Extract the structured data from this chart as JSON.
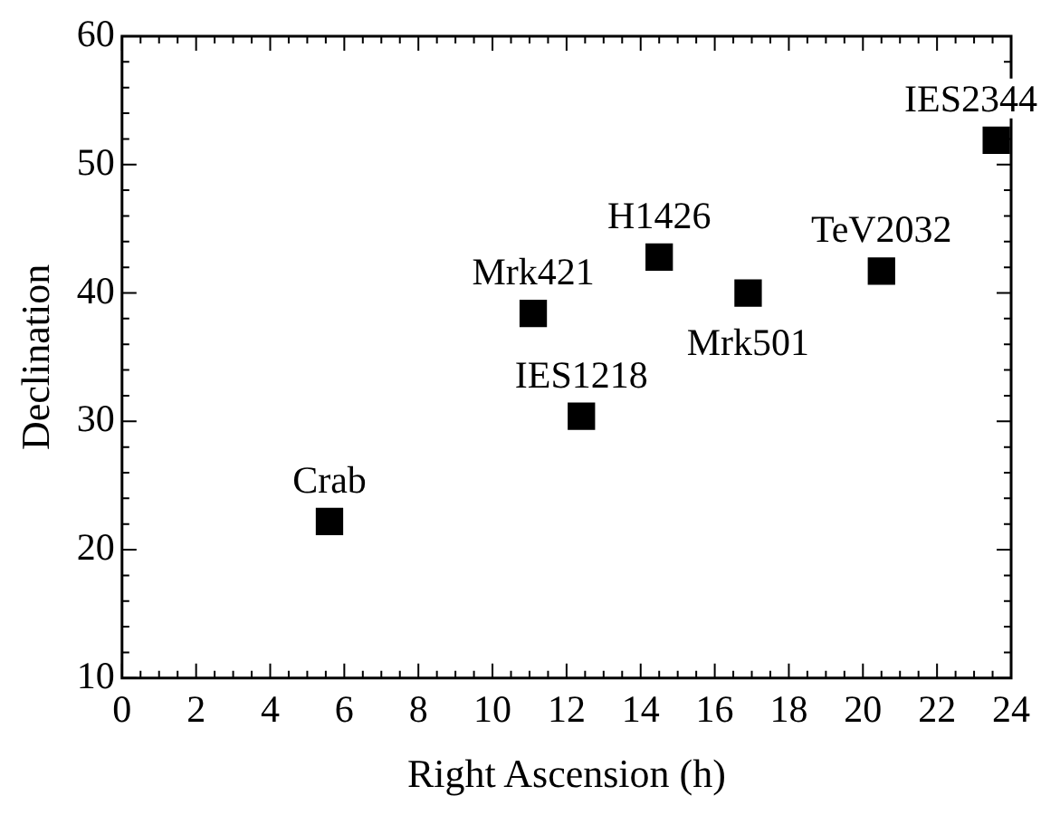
{
  "chart_data": {
    "type": "scatter",
    "xlabel": "Right Ascension (h)",
    "ylabel": "Declination",
    "x": [
      5.6,
      11.1,
      12.4,
      14.5,
      16.9,
      20.5,
      23.6
    ],
    "series": [
      {
        "color": "#000000",
        "values": [
          22.2,
          38.4,
          30.4,
          42.8,
          40.0,
          41.7,
          51.9
        ]
      }
    ],
    "xlim": [
      0,
      24
    ],
    "xticks": [
      0,
      2,
      4,
      6,
      8,
      10,
      12,
      14,
      16,
      18,
      20,
      22,
      24
    ],
    "ylim": [
      10,
      60
    ],
    "yticks": [
      10,
      20,
      30,
      40,
      50,
      60
    ],
    "grid": false,
    "legend": false,
    "marker": "square",
    "annotations": [
      {
        "text": "Crab",
        "x": 5.6,
        "y": 22.2
      },
      {
        "text": "Mrk421",
        "x": 11.1,
        "y": 38.4
      },
      {
        "text": "IES1218",
        "x": 12.4,
        "y": 30.4
      },
      {
        "text": "H1426",
        "x": 14.5,
        "y": 42.8
      },
      {
        "text": "Mrk501",
        "x": 16.9,
        "y": 40.0
      },
      {
        "text": "TeV2032",
        "x": 20.5,
        "y": 41.7
      },
      {
        "text": "IES2344",
        "x": 23.6,
        "y": 51.9
      }
    ]
  }
}
